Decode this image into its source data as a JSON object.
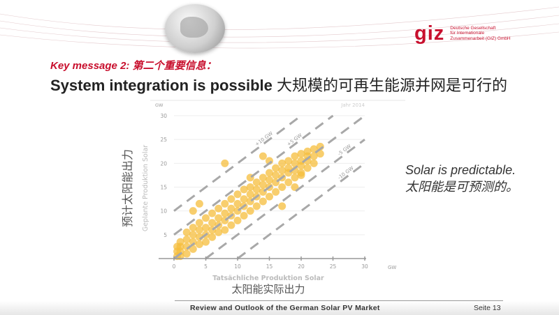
{
  "header": {
    "logo_mark": "giz",
    "logo_text": "Deutsche Gesellschaft\nfür Internationale\nZusammenarbeit (GIZ) GmbH"
  },
  "slide": {
    "key_message": "Key message 2: 第二个重要信息：",
    "title_en": "System integration is possible",
    "title_cn": " 大规模的可再生能源并网是可行的",
    "side_en": "Solar is predictable.",
    "side_cn": "太阳能是可预测的。"
  },
  "footer": {
    "title": "Review and Outlook of the German Solar PV Market",
    "page": "Seite 13"
  },
  "colors": {
    "accent": "#c8102e",
    "points": "#f5bd3c",
    "lines": "#a8a8a8"
  },
  "chart_data": {
    "type": "scatter",
    "title": "Jahr 2014",
    "xlabel": "Tatsächliche Produktion Solar",
    "xlabel_cn": "太阳能实际出力",
    "ylabel": "Geplante Produktion Solar",
    "ylabel_cn": "预计太阳能出力",
    "xunit": "GW",
    "yunit": "GW",
    "xlim": [
      0,
      30
    ],
    "ylim": [
      0,
      30
    ],
    "xticks": [
      "0",
      "5",
      "10",
      "15",
      "20",
      "25",
      "30"
    ],
    "yticks": [
      "5",
      "10",
      "15",
      "20",
      "25",
      "30"
    ],
    "grid": "horizontal",
    "reference_lines": [
      {
        "label": "+10 GW",
        "offset": 10
      },
      {
        "label": "+5 GW",
        "offset": 5
      },
      {
        "label": "",
        "offset": 0
      },
      {
        "label": "-5 GW",
        "offset": -5
      },
      {
        "label": "-10 GW",
        "offset": -10
      }
    ],
    "points": [
      [
        0.5,
        0.5
      ],
      [
        0.5,
        1.5
      ],
      [
        0.5,
        2.5
      ],
      [
        1,
        0.5
      ],
      [
        1,
        1.5
      ],
      [
        1,
        2.5
      ],
      [
        1,
        3.5
      ],
      [
        2,
        1
      ],
      [
        2,
        2.5
      ],
      [
        2,
        4
      ],
      [
        2,
        5.5
      ],
      [
        3,
        2
      ],
      [
        3,
        3.5
      ],
      [
        3,
        5
      ],
      [
        3,
        6.5
      ],
      [
        4,
        3
      ],
      [
        4,
        4.5
      ],
      [
        4,
        6
      ],
      [
        4,
        7.5
      ],
      [
        5,
        3.5
      ],
      [
        5,
        5
      ],
      [
        5,
        6.5
      ],
      [
        5,
        8.5
      ],
      [
        6,
        4.5
      ],
      [
        6,
        6
      ],
      [
        6,
        7.5
      ],
      [
        6,
        9.5
      ],
      [
        7,
        5.5
      ],
      [
        7,
        7
      ],
      [
        7,
        8.5
      ],
      [
        7,
        10.5
      ],
      [
        8,
        6
      ],
      [
        8,
        8
      ],
      [
        8,
        9.5
      ],
      [
        8,
        11.5
      ],
      [
        9,
        7
      ],
      [
        9,
        9
      ],
      [
        9,
        10.5
      ],
      [
        9,
        12.5
      ],
      [
        10,
        8
      ],
      [
        10,
        10
      ],
      [
        10,
        11.5
      ],
      [
        10,
        13.5
      ],
      [
        11,
        9
      ],
      [
        11,
        11
      ],
      [
        11,
        12.5
      ],
      [
        11,
        14.5
      ],
      [
        12,
        10
      ],
      [
        12,
        12
      ],
      [
        12,
        13.5
      ],
      [
        12,
        15
      ],
      [
        13,
        11
      ],
      [
        13,
        13
      ],
      [
        13,
        14.5
      ],
      [
        13,
        16
      ],
      [
        14,
        12
      ],
      [
        14,
        14
      ],
      [
        14,
        15.5
      ],
      [
        14,
        17
      ],
      [
        15,
        13
      ],
      [
        15,
        15
      ],
      [
        15,
        16.5
      ],
      [
        15,
        18
      ],
      [
        16,
        14
      ],
      [
        16,
        16
      ],
      [
        16,
        17.5
      ],
      [
        16,
        19
      ],
      [
        17,
        15
      ],
      [
        17,
        17
      ],
      [
        17,
        18.5
      ],
      [
        17,
        20
      ],
      [
        18,
        16
      ],
      [
        18,
        18
      ],
      [
        18,
        19
      ],
      [
        18,
        20.5
      ],
      [
        19,
        17
      ],
      [
        19,
        18.5
      ],
      [
        19,
        20
      ],
      [
        19,
        21.5
      ],
      [
        20,
        18
      ],
      [
        20,
        19.5
      ],
      [
        20,
        20.5
      ],
      [
        20,
        22
      ],
      [
        21,
        19
      ],
      [
        21,
        20.5
      ],
      [
        21,
        21.5
      ],
      [
        21,
        22.5
      ],
      [
        22,
        20
      ],
      [
        22,
        21.5
      ],
      [
        22,
        23
      ],
      [
        23,
        22
      ],
      [
        23,
        23.5
      ],
      [
        3,
        10
      ],
      [
        4,
        11.5
      ],
      [
        8,
        20
      ],
      [
        14,
        21.5
      ],
      [
        15,
        20.5
      ],
      [
        12,
        17
      ],
      [
        17,
        11
      ],
      [
        19,
        15
      ],
      [
        20,
        17.5
      ]
    ]
  }
}
